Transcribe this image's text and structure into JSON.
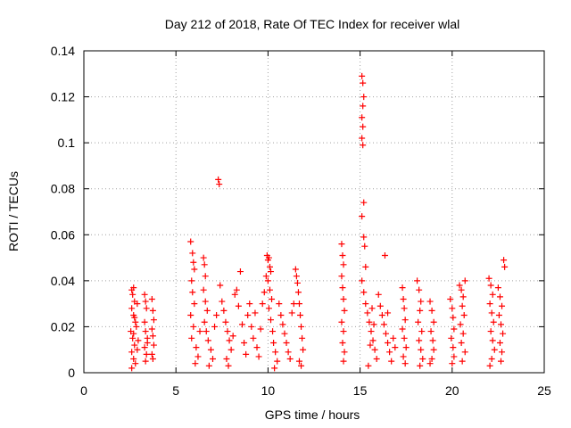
{
  "chart_data": {
    "type": "scatter",
    "title": "Day 212 of 2018, Rate Of TEC Index for receiver wlal",
    "xlabel": "GPS time / hours",
    "ylabel": "ROTI / TECUs",
    "xlim": [
      0,
      25
    ],
    "ylim": [
      0,
      0.14
    ],
    "x_ticks": [
      0,
      5,
      10,
      15,
      20,
      25
    ],
    "y_ticks": [
      0,
      0.02,
      0.04,
      0.06,
      0.08,
      0.1,
      0.12,
      0.14
    ],
    "x_tick_labels": [
      "0",
      "5",
      "10",
      "15",
      "20",
      "25"
    ],
    "y_tick_labels": [
      "0",
      "0.02",
      "0.04",
      "0.06",
      "0.08",
      "0.1",
      "0.12",
      "0.14"
    ],
    "grid": true,
    "marker": "+",
    "color": "#ff0000",
    "series": [
      {
        "name": "ROTI",
        "points": [
          [
            2.6,
            0.036
          ],
          [
            2.65,
            0.034
          ],
          [
            2.7,
            0.037
          ],
          [
            2.75,
            0.031
          ],
          [
            2.6,
            0.028
          ],
          [
            2.7,
            0.025
          ],
          [
            2.8,
            0.022
          ],
          [
            2.55,
            0.018
          ],
          [
            2.65,
            0.015
          ],
          [
            2.75,
            0.012
          ],
          [
            2.6,
            0.009
          ],
          [
            2.7,
            0.006
          ],
          [
            2.8,
            0.004
          ],
          [
            2.9,
            0.01
          ],
          [
            2.85,
            0.02
          ],
          [
            2.95,
            0.014
          ],
          [
            2.6,
            0.002
          ],
          [
            2.7,
            0.017
          ],
          [
            2.75,
            0.024
          ],
          [
            2.9,
            0.03
          ],
          [
            3.3,
            0.034
          ],
          [
            3.35,
            0.031
          ],
          [
            3.4,
            0.028
          ],
          [
            3.3,
            0.022
          ],
          [
            3.35,
            0.018
          ],
          [
            3.45,
            0.015
          ],
          [
            3.3,
            0.011
          ],
          [
            3.4,
            0.008
          ],
          [
            3.35,
            0.005
          ],
          [
            3.45,
            0.013
          ],
          [
            3.7,
            0.032
          ],
          [
            3.75,
            0.027
          ],
          [
            3.8,
            0.023
          ],
          [
            3.7,
            0.019
          ],
          [
            3.75,
            0.016
          ],
          [
            3.8,
            0.012
          ],
          [
            3.7,
            0.008
          ],
          [
            3.75,
            0.006
          ],
          [
            5.8,
            0.057
          ],
          [
            5.9,
            0.052
          ],
          [
            5.95,
            0.048
          ],
          [
            6.0,
            0.045
          ],
          [
            5.85,
            0.04
          ],
          [
            5.9,
            0.035
          ],
          [
            6.0,
            0.03
          ],
          [
            5.8,
            0.025
          ],
          [
            5.95,
            0.02
          ],
          [
            5.85,
            0.015
          ],
          [
            6.1,
            0.011
          ],
          [
            6.2,
            0.007
          ],
          [
            6.05,
            0.004
          ],
          [
            6.3,
            0.018
          ],
          [
            6.5,
            0.05
          ],
          [
            6.55,
            0.047
          ],
          [
            6.6,
            0.042
          ],
          [
            6.5,
            0.036
          ],
          [
            6.6,
            0.031
          ],
          [
            6.7,
            0.027
          ],
          [
            6.55,
            0.022
          ],
          [
            6.65,
            0.018
          ],
          [
            6.75,
            0.014
          ],
          [
            6.9,
            0.01
          ],
          [
            7.0,
            0.006
          ],
          [
            7.1,
            0.02
          ],
          [
            7.2,
            0.025
          ],
          [
            6.8,
            0.003
          ],
          [
            7.3,
            0.084
          ],
          [
            7.35,
            0.082
          ],
          [
            7.4,
            0.038
          ],
          [
            7.5,
            0.031
          ],
          [
            7.6,
            0.027
          ],
          [
            7.7,
            0.022
          ],
          [
            7.8,
            0.018
          ],
          [
            7.9,
            0.014
          ],
          [
            8.0,
            0.01
          ],
          [
            7.75,
            0.006
          ],
          [
            7.85,
            0.003
          ],
          [
            8.1,
            0.016
          ],
          [
            8.2,
            0.034
          ],
          [
            8.3,
            0.036
          ],
          [
            8.4,
            0.029
          ],
          [
            8.5,
            0.044
          ],
          [
            8.6,
            0.021
          ],
          [
            8.7,
            0.013
          ],
          [
            8.8,
            0.008
          ],
          [
            8.9,
            0.025
          ],
          [
            9.0,
            0.03
          ],
          [
            9.1,
            0.02
          ],
          [
            9.2,
            0.015
          ],
          [
            9.3,
            0.026
          ],
          [
            9.4,
            0.011
          ],
          [
            9.5,
            0.007
          ],
          [
            9.6,
            0.019
          ],
          [
            9.7,
            0.03
          ],
          [
            9.8,
            0.035
          ],
          [
            9.9,
            0.042
          ],
          [
            9.95,
            0.051
          ],
          [
            10.0,
            0.049
          ],
          [
            10.05,
            0.05
          ],
          [
            10.1,
            0.046
          ],
          [
            10.15,
            0.044
          ],
          [
            10.0,
            0.04
          ],
          [
            10.1,
            0.036
          ],
          [
            10.2,
            0.032
          ],
          [
            10.05,
            0.028
          ],
          [
            10.15,
            0.023
          ],
          [
            10.25,
            0.018
          ],
          [
            10.3,
            0.013
          ],
          [
            10.4,
            0.009
          ],
          [
            10.5,
            0.005
          ],
          [
            10.35,
            0.002
          ],
          [
            10.6,
            0.03
          ],
          [
            10.7,
            0.025
          ],
          [
            10.8,
            0.021
          ],
          [
            10.9,
            0.017
          ],
          [
            11.0,
            0.013
          ],
          [
            11.1,
            0.009
          ],
          [
            11.2,
            0.006
          ],
          [
            11.3,
            0.026
          ],
          [
            11.4,
            0.03
          ],
          [
            11.5,
            0.045
          ],
          [
            11.55,
            0.042
          ],
          [
            11.6,
            0.039
          ],
          [
            11.65,
            0.035
          ],
          [
            11.7,
            0.03
          ],
          [
            11.75,
            0.025
          ],
          [
            11.8,
            0.02
          ],
          [
            11.85,
            0.015
          ],
          [
            11.9,
            0.01
          ],
          [
            11.7,
            0.005
          ],
          [
            11.8,
            0.003
          ],
          [
            14.0,
            0.056
          ],
          [
            14.05,
            0.051
          ],
          [
            14.1,
            0.047
          ],
          [
            14.0,
            0.042
          ],
          [
            14.05,
            0.037
          ],
          [
            14.1,
            0.032
          ],
          [
            14.15,
            0.027
          ],
          [
            14.0,
            0.022
          ],
          [
            14.1,
            0.018
          ],
          [
            14.05,
            0.013
          ],
          [
            14.15,
            0.009
          ],
          [
            14.1,
            0.005
          ],
          [
            15.1,
            0.129
          ],
          [
            15.15,
            0.126
          ],
          [
            15.2,
            0.12
          ],
          [
            15.15,
            0.116
          ],
          [
            15.1,
            0.111
          ],
          [
            15.15,
            0.107
          ],
          [
            15.1,
            0.102
          ],
          [
            15.15,
            0.099
          ],
          [
            15.2,
            0.074
          ],
          [
            15.1,
            0.068
          ],
          [
            15.2,
            0.059
          ],
          [
            15.25,
            0.055
          ],
          [
            15.3,
            0.046
          ],
          [
            15.1,
            0.04
          ],
          [
            15.2,
            0.035
          ],
          [
            15.3,
            0.03
          ],
          [
            15.4,
            0.026
          ],
          [
            15.5,
            0.022
          ],
          [
            15.6,
            0.018
          ],
          [
            15.7,
            0.014
          ],
          [
            15.8,
            0.01
          ],
          [
            15.9,
            0.006
          ],
          [
            15.45,
            0.003
          ],
          [
            15.55,
            0.012
          ],
          [
            15.65,
            0.028
          ],
          [
            15.75,
            0.021
          ],
          [
            16.0,
            0.034
          ],
          [
            16.1,
            0.029
          ],
          [
            16.2,
            0.025
          ],
          [
            16.3,
            0.021
          ],
          [
            16.4,
            0.017
          ],
          [
            16.5,
            0.013
          ],
          [
            16.6,
            0.009
          ],
          [
            16.7,
            0.005
          ],
          [
            16.35,
            0.051
          ],
          [
            16.5,
            0.026
          ],
          [
            16.8,
            0.015
          ],
          [
            16.9,
            0.011
          ],
          [
            17.3,
            0.037
          ],
          [
            17.35,
            0.032
          ],
          [
            17.4,
            0.028
          ],
          [
            17.45,
            0.023
          ],
          [
            17.3,
            0.019
          ],
          [
            17.4,
            0.015
          ],
          [
            17.5,
            0.011
          ],
          [
            17.35,
            0.007
          ],
          [
            17.45,
            0.004
          ],
          [
            18.1,
            0.04
          ],
          [
            18.2,
            0.036
          ],
          [
            18.3,
            0.031
          ],
          [
            18.25,
            0.027
          ],
          [
            18.15,
            0.022
          ],
          [
            18.35,
            0.018
          ],
          [
            18.2,
            0.014
          ],
          [
            18.3,
            0.01
          ],
          [
            18.4,
            0.006
          ],
          [
            18.25,
            0.003
          ],
          [
            18.8,
            0.031
          ],
          [
            18.9,
            0.027
          ],
          [
            19.0,
            0.022
          ],
          [
            18.85,
            0.018
          ],
          [
            18.95,
            0.014
          ],
          [
            19.0,
            0.01
          ],
          [
            18.9,
            0.006
          ],
          [
            18.8,
            0.004
          ],
          [
            19.9,
            0.032
          ],
          [
            20.0,
            0.028
          ],
          [
            20.05,
            0.024
          ],
          [
            20.1,
            0.019
          ],
          [
            19.95,
            0.015
          ],
          [
            20.05,
            0.011
          ],
          [
            20.1,
            0.007
          ],
          [
            20.0,
            0.004
          ],
          [
            20.4,
            0.038
          ],
          [
            20.5,
            0.036
          ],
          [
            20.6,
            0.033
          ],
          [
            20.7,
            0.04
          ],
          [
            20.55,
            0.029
          ],
          [
            20.65,
            0.025
          ],
          [
            20.45,
            0.021
          ],
          [
            20.6,
            0.017
          ],
          [
            20.5,
            0.013
          ],
          [
            20.7,
            0.009
          ],
          [
            20.55,
            0.005
          ],
          [
            22.0,
            0.041
          ],
          [
            22.1,
            0.038
          ],
          [
            22.2,
            0.034
          ],
          [
            22.05,
            0.03
          ],
          [
            22.15,
            0.026
          ],
          [
            22.25,
            0.022
          ],
          [
            22.1,
            0.018
          ],
          [
            22.2,
            0.014
          ],
          [
            22.3,
            0.01
          ],
          [
            22.15,
            0.006
          ],
          [
            22.05,
            0.003
          ],
          [
            22.5,
            0.037
          ],
          [
            22.6,
            0.033
          ],
          [
            22.7,
            0.029
          ],
          [
            22.55,
            0.025
          ],
          [
            22.65,
            0.021
          ],
          [
            22.75,
            0.017
          ],
          [
            22.6,
            0.013
          ],
          [
            22.7,
            0.009
          ],
          [
            22.8,
            0.049
          ],
          [
            22.85,
            0.046
          ],
          [
            22.65,
            0.005
          ]
        ]
      }
    ]
  }
}
